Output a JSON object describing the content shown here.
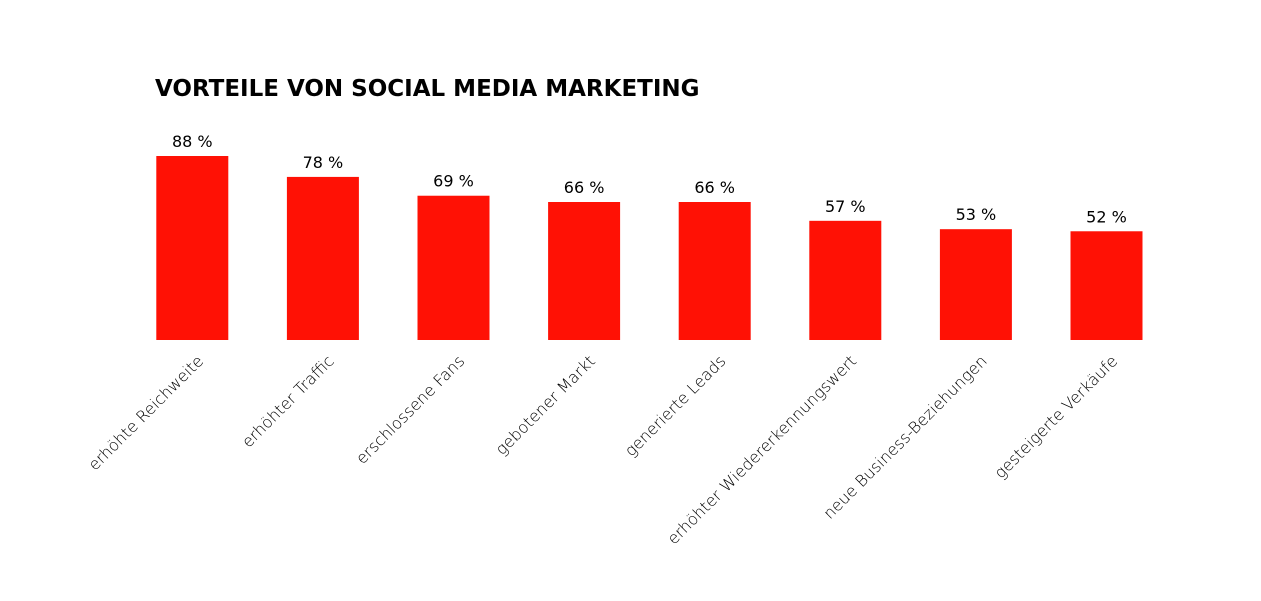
{
  "chart_data": {
    "type": "bar",
    "title": "VORTEILE VON SOCIAL MEDIA MARKETING",
    "categories": [
      "erhöhte Reichweite",
      "erhöhter Traffic",
      "erschlossene Fans",
      "gebotener Markt",
      "generierte Leads",
      "erhöhter Wiedererkennungswert",
      "neue Business-Beziehungen",
      "gesteigerte Verkäufe"
    ],
    "values": [
      88,
      78,
      69,
      66,
      66,
      57,
      53,
      52
    ],
    "value_labels": [
      "88 %",
      "78 %",
      "69 %",
      "66 %",
      "66 %",
      "57 %",
      "53 %",
      "52 %"
    ],
    "color": "#ff1105"
  }
}
